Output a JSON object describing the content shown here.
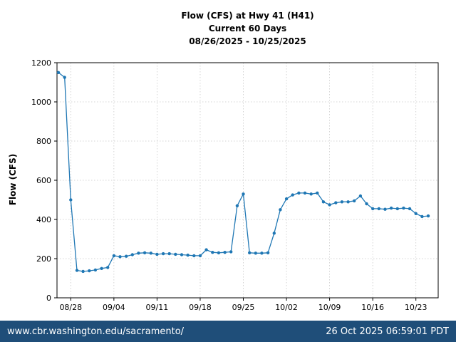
{
  "page": {
    "footer": {
      "url": "www.cbr.washington.edu/sacramento/",
      "timestamp": "26 Oct 2025 06:59:01 PDT",
      "bg_color": "#1f4e79",
      "text_color": "#ffffff"
    }
  },
  "chart_data": {
    "type": "line",
    "title": "Flow (CFS) at Hwy 41 (H41)",
    "subtitle": "Current 60 Days",
    "date_range": "08/26/2025 - 10/25/2025",
    "ylabel": "Flow (CFS)",
    "xlabel": "",
    "ylim": [
      0,
      1200
    ],
    "yticks": [
      0,
      200,
      400,
      600,
      800,
      1000,
      1200
    ],
    "grid": true,
    "legend": "none",
    "line_color": "#1f77b4",
    "marker": "circle",
    "xtick_labels": [
      "08/28",
      "09/04",
      "09/11",
      "09/18",
      "09/25",
      "10/02",
      "10/09",
      "10/16",
      "10/23"
    ],
    "xtick_indices": [
      2,
      9,
      16,
      23,
      30,
      37,
      44,
      51,
      58
    ],
    "x": [
      "08/26",
      "08/27",
      "08/28",
      "08/29",
      "08/30",
      "08/31",
      "09/01",
      "09/02",
      "09/03",
      "09/04",
      "09/05",
      "09/06",
      "09/07",
      "09/08",
      "09/09",
      "09/10",
      "09/11",
      "09/12",
      "09/13",
      "09/14",
      "09/15",
      "09/16",
      "09/17",
      "09/18",
      "09/19",
      "09/20",
      "09/21",
      "09/22",
      "09/23",
      "09/24",
      "09/25",
      "09/26",
      "09/27",
      "09/28",
      "09/29",
      "09/30",
      "10/01",
      "10/02",
      "10/03",
      "10/04",
      "10/05",
      "10/06",
      "10/07",
      "10/08",
      "10/09",
      "10/10",
      "10/11",
      "10/12",
      "10/13",
      "10/14",
      "10/15",
      "10/16",
      "10/17",
      "10/18",
      "10/19",
      "10/20",
      "10/21",
      "10/22",
      "10/23",
      "10/24",
      "10/25"
    ],
    "values": [
      1150,
      1125,
      500,
      140,
      135,
      138,
      142,
      150,
      155,
      215,
      210,
      212,
      220,
      228,
      230,
      228,
      222,
      225,
      225,
      222,
      220,
      218,
      215,
      215,
      245,
      232,
      230,
      232,
      235,
      470,
      530,
      230,
      228,
      228,
      230,
      330,
      450,
      505,
      525,
      535,
      535,
      530,
      535,
      490,
      475,
      485,
      490,
      490,
      495,
      520,
      480,
      455,
      455,
      452,
      458,
      455,
      458,
      455,
      430,
      415,
      418
    ]
  }
}
